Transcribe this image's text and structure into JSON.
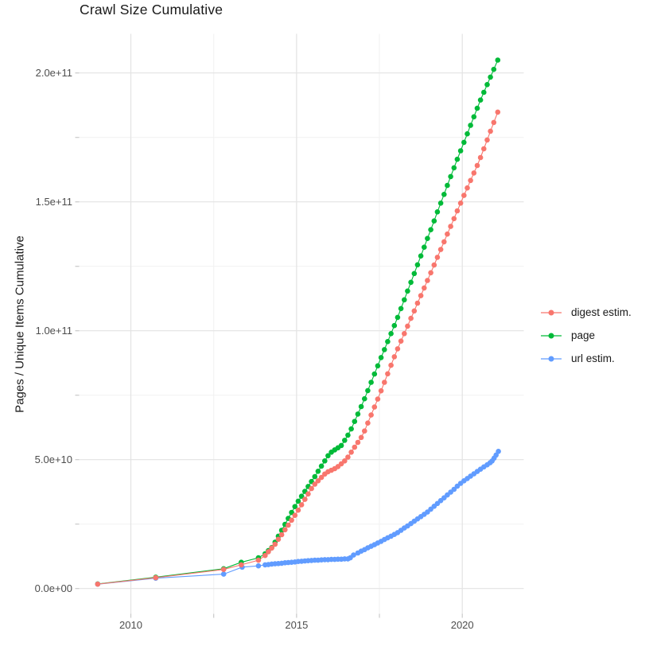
{
  "page": {
    "title": "Crawl Size Cumulative"
  },
  "chart_data": {
    "type": "scatter-line",
    "title": "Crawl Size Cumulative",
    "xlabel": "",
    "ylabel": "Pages / Unique Items Cumulative",
    "grid": true,
    "legend_position": "right",
    "xlim": [
      2008.44,
      2021.85
    ],
    "ylim_e9": [
      -10.2,
      215.2
    ],
    "x_ticks": [
      {
        "value": 2010,
        "label": "2010"
      },
      {
        "value": 2015,
        "label": "2015"
      },
      {
        "value": 2020,
        "label": "2020"
      }
    ],
    "x_minor": [
      2012.5,
      2017.5
    ],
    "y_ticks": [
      {
        "value_e9": 0,
        "label": "0.0e+00"
      },
      {
        "value_e9": 50,
        "label": "5.0e+10"
      },
      {
        "value_e9": 100,
        "label": "1.0e+11"
      },
      {
        "value_e9": 150,
        "label": "1.5e+11"
      },
      {
        "value_e9": 200,
        "label": "2.0e+11"
      }
    ],
    "y_minor_e9": [
      25,
      75,
      125,
      175
    ],
    "series": [
      {
        "name": "digest estim.",
        "color": "#F8766D",
        "points": [
          [
            2009.0,
            1.7
          ],
          [
            2010.75,
            4.2
          ],
          [
            2012.8,
            7.4
          ],
          [
            2013.33,
            9.2
          ],
          [
            2013.85,
            11.0
          ],
          [
            2014.05,
            12.8
          ],
          [
            2014.15,
            14.3
          ],
          [
            2014.25,
            15.7
          ],
          [
            2014.35,
            17.2
          ],
          [
            2014.45,
            19.1
          ],
          [
            2014.55,
            20.9
          ],
          [
            2014.65,
            22.8
          ],
          [
            2014.75,
            24.6
          ],
          [
            2014.85,
            26.5
          ],
          [
            2014.95,
            28.4
          ],
          [
            2015.05,
            30.4
          ],
          [
            2015.15,
            32.5
          ],
          [
            2015.25,
            34.6
          ],
          [
            2015.35,
            36.7
          ],
          [
            2015.45,
            38.8
          ],
          [
            2015.55,
            40.5
          ],
          [
            2015.65,
            41.8
          ],
          [
            2015.75,
            43.1
          ],
          [
            2015.85,
            44.4
          ],
          [
            2015.95,
            45.3
          ],
          [
            2016.05,
            45.9
          ],
          [
            2016.15,
            46.5
          ],
          [
            2016.25,
            47.3
          ],
          [
            2016.35,
            48.4
          ],
          [
            2016.45,
            49.5
          ],
          [
            2016.55,
            51.0
          ],
          [
            2016.65,
            52.9
          ],
          [
            2016.75,
            54.8
          ],
          [
            2016.85,
            56.7
          ],
          [
            2016.95,
            58.6
          ],
          [
            2017.05,
            61.1
          ],
          [
            2017.15,
            64.2
          ],
          [
            2017.25,
            67.3
          ],
          [
            2017.35,
            70.4
          ],
          [
            2017.45,
            73.5
          ],
          [
            2017.55,
            76.7
          ],
          [
            2017.65,
            80.0
          ],
          [
            2017.75,
            83.3
          ],
          [
            2017.85,
            86.6
          ],
          [
            2017.95,
            89.9
          ],
          [
            2018.05,
            93.0
          ],
          [
            2018.15,
            96.0
          ],
          [
            2018.25,
            98.9
          ],
          [
            2018.35,
            101.8
          ],
          [
            2018.45,
            104.8
          ],
          [
            2018.55,
            107.7
          ],
          [
            2018.65,
            110.7
          ],
          [
            2018.75,
            113.6
          ],
          [
            2018.85,
            116.6
          ],
          [
            2018.95,
            119.5
          ],
          [
            2019.05,
            122.5
          ],
          [
            2019.15,
            125.5
          ],
          [
            2019.25,
            128.5
          ],
          [
            2019.35,
            131.5
          ],
          [
            2019.45,
            134.5
          ],
          [
            2019.55,
            137.5
          ],
          [
            2019.65,
            140.5
          ],
          [
            2019.75,
            143.5
          ],
          [
            2019.85,
            146.5
          ],
          [
            2019.95,
            149.5
          ],
          [
            2020.05,
            152.5
          ],
          [
            2020.15,
            155.4
          ],
          [
            2020.25,
            158.3
          ],
          [
            2020.35,
            161.2
          ],
          [
            2020.45,
            164.1
          ],
          [
            2020.55,
            167.2
          ],
          [
            2020.65,
            170.6
          ],
          [
            2020.75,
            174.0
          ],
          [
            2020.85,
            177.4
          ],
          [
            2020.95,
            180.8
          ],
          [
            2021.07,
            184.8
          ]
        ]
      },
      {
        "name": "page",
        "color": "#00BA38",
        "points": [
          [
            2009.0,
            1.8
          ],
          [
            2010.75,
            4.4
          ],
          [
            2012.8,
            7.7
          ],
          [
            2013.33,
            10.2
          ],
          [
            2013.85,
            11.9
          ],
          [
            2014.05,
            13.5
          ],
          [
            2014.15,
            14.7
          ],
          [
            2014.25,
            15.9
          ],
          [
            2014.35,
            18.0
          ],
          [
            2014.45,
            20.3
          ],
          [
            2014.55,
            22.6
          ],
          [
            2014.65,
            24.9
          ],
          [
            2014.75,
            27.2
          ],
          [
            2014.85,
            29.5
          ],
          [
            2014.95,
            31.8
          ],
          [
            2015.05,
            33.9
          ],
          [
            2015.15,
            35.8
          ],
          [
            2015.25,
            37.7
          ],
          [
            2015.35,
            39.6
          ],
          [
            2015.45,
            41.5
          ],
          [
            2015.55,
            43.4
          ],
          [
            2015.65,
            45.5
          ],
          [
            2015.75,
            47.5
          ],
          [
            2015.85,
            49.5
          ],
          [
            2015.95,
            51.5
          ],
          [
            2016.05,
            52.9
          ],
          [
            2016.15,
            53.8
          ],
          [
            2016.25,
            54.6
          ],
          [
            2016.35,
            55.5
          ],
          [
            2016.45,
            57.5
          ],
          [
            2016.55,
            59.5
          ],
          [
            2016.65,
            61.9
          ],
          [
            2016.75,
            64.8
          ],
          [
            2016.85,
            67.7
          ],
          [
            2016.95,
            70.6
          ],
          [
            2017.05,
            73.6
          ],
          [
            2017.15,
            76.8
          ],
          [
            2017.25,
            80.0
          ],
          [
            2017.35,
            83.2
          ],
          [
            2017.45,
            86.4
          ],
          [
            2017.55,
            89.6
          ],
          [
            2017.65,
            92.7
          ],
          [
            2017.75,
            95.8
          ],
          [
            2017.85,
            98.9
          ],
          [
            2017.95,
            102.0
          ],
          [
            2018.05,
            105.2
          ],
          [
            2018.15,
            108.6
          ],
          [
            2018.25,
            112.0
          ],
          [
            2018.35,
            115.4
          ],
          [
            2018.45,
            118.8
          ],
          [
            2018.55,
            122.2
          ],
          [
            2018.65,
            125.6
          ],
          [
            2018.75,
            129.0
          ],
          [
            2018.85,
            132.4
          ],
          [
            2018.95,
            135.8
          ],
          [
            2019.05,
            139.2
          ],
          [
            2019.15,
            142.6
          ],
          [
            2019.25,
            146.1
          ],
          [
            2019.35,
            149.5
          ],
          [
            2019.45,
            152.9
          ],
          [
            2019.55,
            156.4
          ],
          [
            2019.65,
            159.8
          ],
          [
            2019.75,
            163.2
          ],
          [
            2019.85,
            166.5
          ],
          [
            2019.95,
            169.8
          ],
          [
            2020.05,
            173.1
          ],
          [
            2020.15,
            176.4
          ],
          [
            2020.25,
            179.7
          ],
          [
            2020.35,
            183.0
          ],
          [
            2020.45,
            186.3
          ],
          [
            2020.55,
            189.5
          ],
          [
            2020.65,
            192.5
          ],
          [
            2020.75,
            195.5
          ],
          [
            2020.85,
            198.4
          ],
          [
            2020.95,
            201.4
          ],
          [
            2021.07,
            205.0
          ]
        ]
      },
      {
        "name": "url estim.",
        "color": "#619CFF",
        "points": [
          [
            2009.0,
            1.7
          ],
          [
            2010.75,
            4.0
          ],
          [
            2012.8,
            5.6
          ],
          [
            2013.36,
            8.3
          ],
          [
            2013.85,
            8.8
          ],
          [
            2014.05,
            9.2
          ],
          [
            2014.15,
            9.3
          ],
          [
            2014.25,
            9.5
          ],
          [
            2014.35,
            9.6
          ],
          [
            2014.45,
            9.7
          ],
          [
            2014.55,
            9.8
          ],
          [
            2014.65,
            10.0
          ],
          [
            2014.75,
            10.1
          ],
          [
            2014.85,
            10.2
          ],
          [
            2014.95,
            10.3
          ],
          [
            2015.05,
            10.5
          ],
          [
            2015.15,
            10.6
          ],
          [
            2015.25,
            10.7
          ],
          [
            2015.35,
            10.8
          ],
          [
            2015.45,
            10.9
          ],
          [
            2015.55,
            11.0
          ],
          [
            2015.65,
            11.0
          ],
          [
            2015.75,
            11.1
          ],
          [
            2015.85,
            11.2
          ],
          [
            2015.95,
            11.2
          ],
          [
            2016.05,
            11.3
          ],
          [
            2016.15,
            11.3
          ],
          [
            2016.25,
            11.4
          ],
          [
            2016.35,
            11.4
          ],
          [
            2016.45,
            11.5
          ],
          [
            2016.55,
            11.5
          ],
          [
            2016.62,
            11.9
          ],
          [
            2016.72,
            13.0
          ],
          [
            2016.85,
            13.8
          ],
          [
            2016.95,
            14.5
          ],
          [
            2017.05,
            15.1
          ],
          [
            2017.15,
            15.8
          ],
          [
            2017.25,
            16.4
          ],
          [
            2017.35,
            17.0
          ],
          [
            2017.45,
            17.7
          ],
          [
            2017.55,
            18.3
          ],
          [
            2017.65,
            19.0
          ],
          [
            2017.75,
            19.7
          ],
          [
            2017.85,
            20.3
          ],
          [
            2017.95,
            21.0
          ],
          [
            2018.05,
            21.7
          ],
          [
            2018.15,
            22.6
          ],
          [
            2018.25,
            23.5
          ],
          [
            2018.35,
            24.3
          ],
          [
            2018.45,
            25.2
          ],
          [
            2018.55,
            26.1
          ],
          [
            2018.65,
            27.0
          ],
          [
            2018.75,
            27.9
          ],
          [
            2018.85,
            28.8
          ],
          [
            2018.95,
            29.7
          ],
          [
            2019.05,
            30.8
          ],
          [
            2019.15,
            31.9
          ],
          [
            2019.25,
            33.0
          ],
          [
            2019.35,
            34.1
          ],
          [
            2019.45,
            35.2
          ],
          [
            2019.55,
            36.3
          ],
          [
            2019.65,
            37.4
          ],
          [
            2019.75,
            38.5
          ],
          [
            2019.85,
            39.7
          ],
          [
            2019.95,
            40.8
          ],
          [
            2020.05,
            41.8
          ],
          [
            2020.15,
            42.7
          ],
          [
            2020.25,
            43.6
          ],
          [
            2020.35,
            44.5
          ],
          [
            2020.45,
            45.4
          ],
          [
            2020.55,
            46.3
          ],
          [
            2020.65,
            47.2
          ],
          [
            2020.75,
            48.0
          ],
          [
            2020.84,
            48.8
          ],
          [
            2020.9,
            49.5
          ],
          [
            2020.96,
            50.6
          ],
          [
            2021.02,
            51.8
          ],
          [
            2021.09,
            53.2
          ]
        ]
      }
    ],
    "colors": {
      "grid_major": "#e3e3e3",
      "grid_minor": "#f1f1f1",
      "tick_mark": "#c9c9c9",
      "tick_text": "#4d4d4d",
      "title_text": "#191919"
    }
  }
}
